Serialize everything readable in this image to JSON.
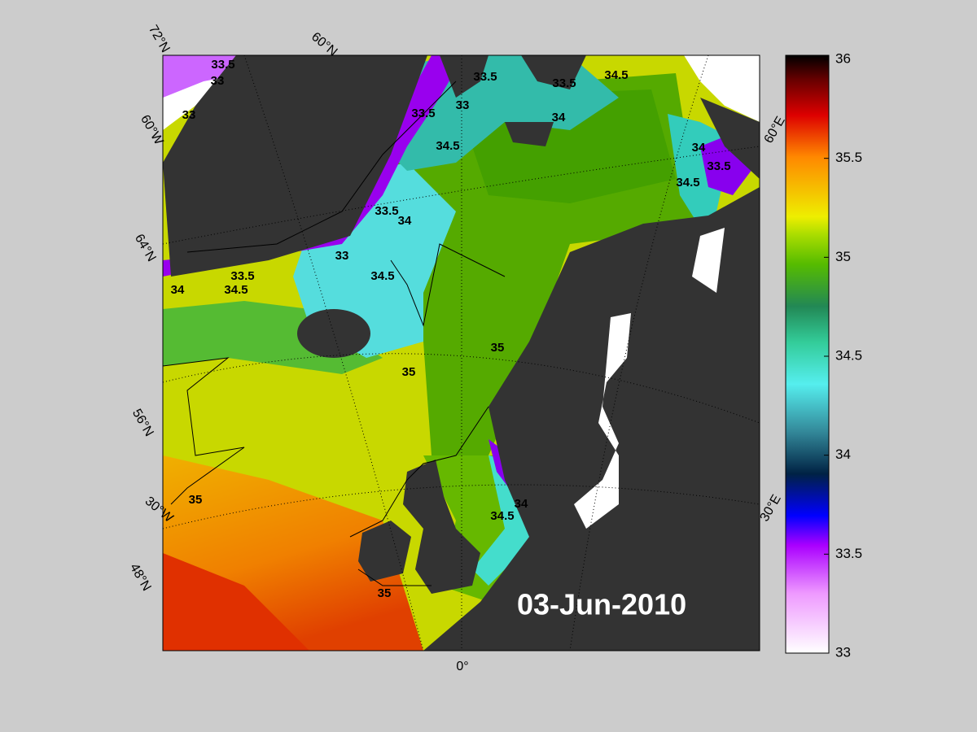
{
  "map": {
    "date_label": "03-Jun-2010",
    "graticule_labels": [
      "72°N",
      "60°N",
      "60°W",
      "64°N",
      "56°N",
      "30°W",
      "48°N",
      "0°",
      "30°E",
      "60°E"
    ],
    "contour_labels": [
      "33.5",
      "33",
      "33",
      "33.5",
      "33.5",
      "34.5",
      "33.5",
      "33",
      "34",
      "34.5",
      "34",
      "34.5",
      "33.5",
      "33.5",
      "34",
      "33",
      "34.5",
      "35",
      "35",
      "35",
      "34.5",
      "34",
      "35",
      "33.5",
      "34",
      "34.5"
    ]
  },
  "colorbar": {
    "lim": [
      33,
      36
    ],
    "ticks": [
      33,
      33.5,
      34,
      34.5,
      35,
      35.5,
      36
    ]
  }
}
